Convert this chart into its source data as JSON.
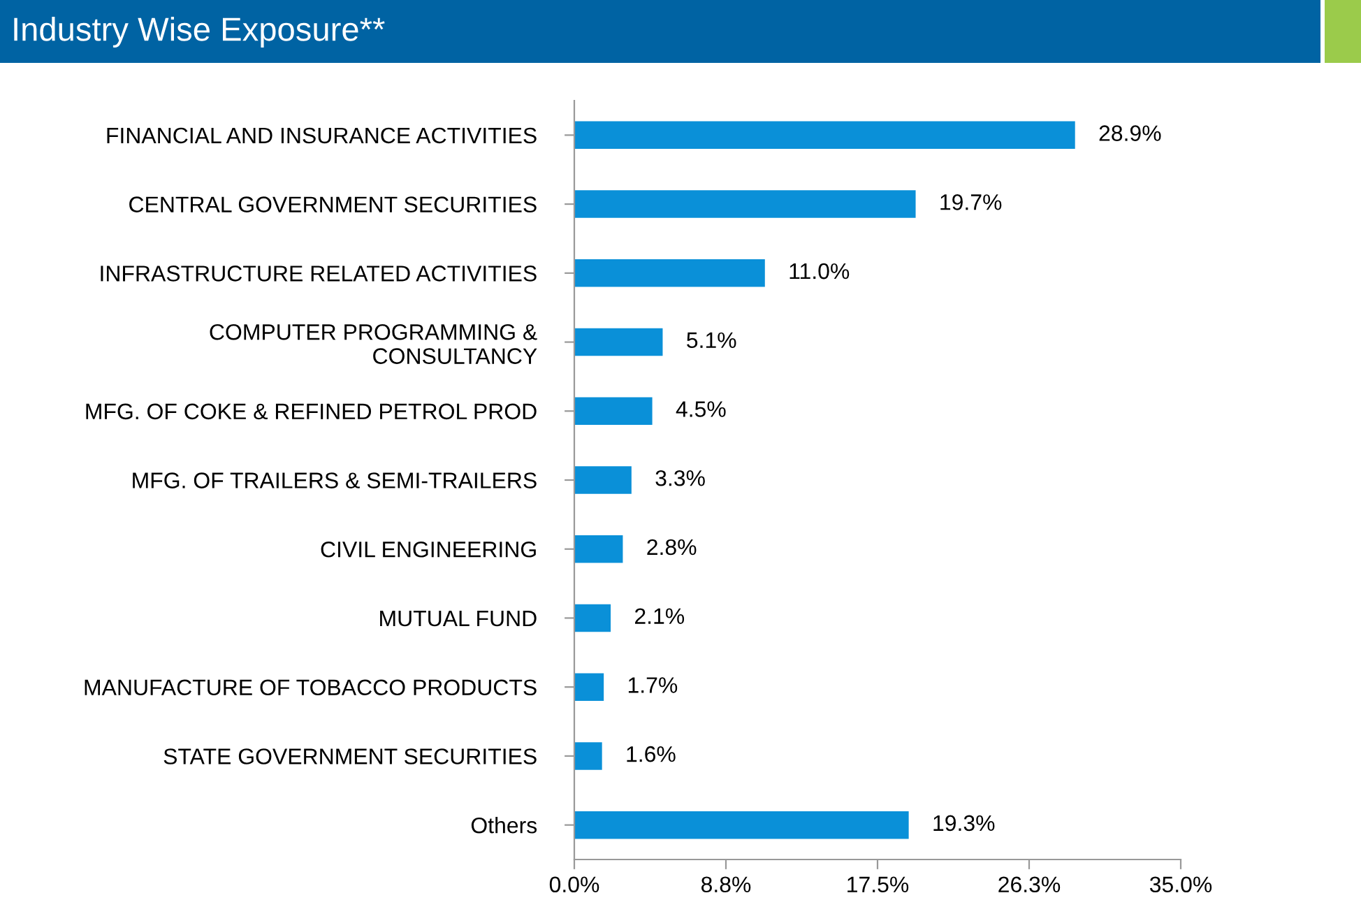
{
  "chart_data": {
    "type": "bar",
    "orientation": "horizontal",
    "title": "Industry Wise Exposure**",
    "categories": [
      "FINANCIAL AND INSURANCE ACTIVITIES",
      "CENTRAL GOVERNMENT SECURITIES",
      "INFRASTRUCTURE RELATED ACTIVITIES",
      "COMPUTER PROGRAMMING &\nCONSULTANCY",
      "MFG. OF COKE & REFINED PETROL PROD",
      "MFG. OF TRAILERS & SEMI-TRAILERS",
      "CIVIL ENGINEERING",
      "MUTUAL FUND",
      "MANUFACTURE OF TOBACCO PRODUCTS",
      "STATE GOVERNMENT SECURITIES",
      "Others"
    ],
    "values": [
      28.9,
      19.7,
      11.0,
      5.1,
      4.5,
      3.3,
      2.8,
      2.1,
      1.7,
      1.6,
      19.3
    ],
    "value_labels": [
      "28.9%",
      "19.7%",
      "11.0%",
      "5.1%",
      "4.5%",
      "3.3%",
      "2.8%",
      "2.1%",
      "1.7%",
      "1.6%",
      "19.3%"
    ],
    "color": "#0a90d8",
    "xlim": [
      0,
      35
    ],
    "xticks": [
      {
        "value": 0,
        "label": "0.0%"
      },
      {
        "value": 8.75,
        "label": "8.8%"
      },
      {
        "value": 17.5,
        "label": "17.5%"
      },
      {
        "value": 26.25,
        "label": "26.3%"
      },
      {
        "value": 35,
        "label": "35.0%"
      }
    ],
    "grid": false,
    "legend": false
  }
}
